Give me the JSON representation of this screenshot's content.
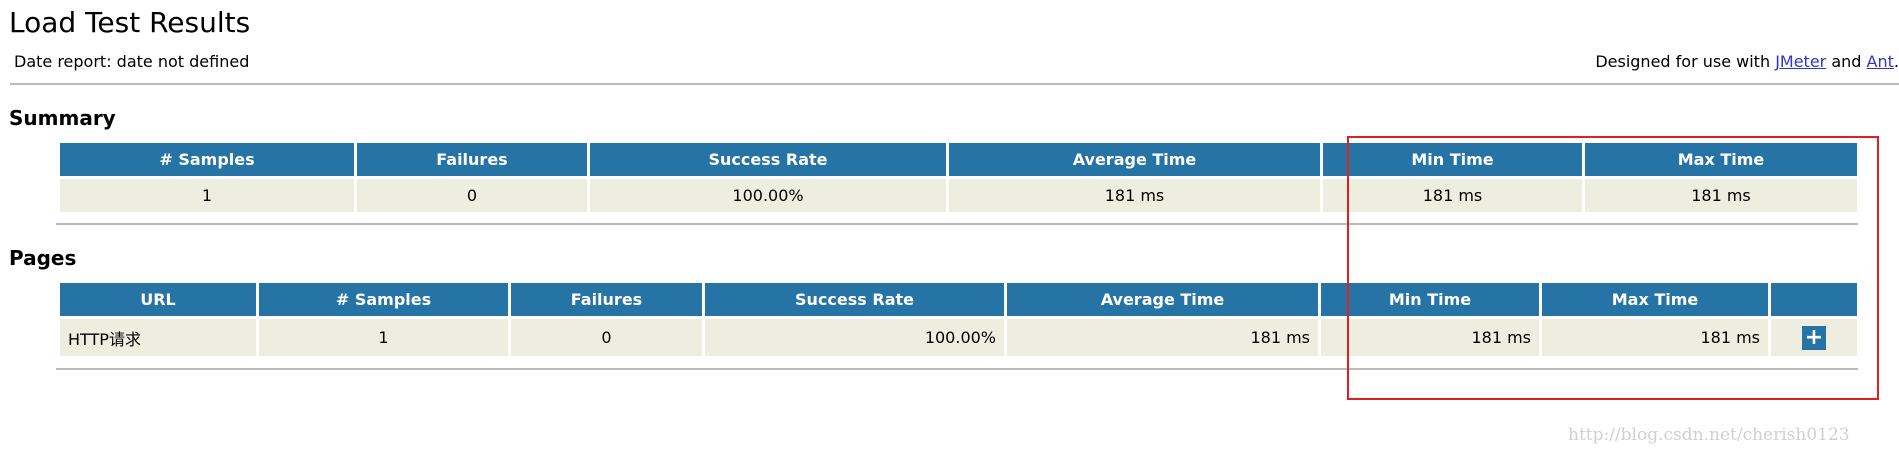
{
  "header": {
    "title": "Load Test Results",
    "date_report": "Date report: date not defined",
    "designed_prefix": "Designed for use with",
    "jmeter": "JMeter",
    "and": "and",
    "ant": "Ant",
    "period": "."
  },
  "summary": {
    "title": "Summary",
    "columns": [
      "# Samples",
      "Failures",
      "Success Rate",
      "Average Time",
      "Min Time",
      "Max Time"
    ],
    "rows": [
      [
        "1",
        "0",
        "100.00%",
        "181 ms",
        "181 ms",
        "181 ms"
      ]
    ]
  },
  "pages": {
    "title": "Pages",
    "columns": [
      "URL",
      "# Samples",
      "Failures",
      "Success Rate",
      "Average Time",
      "Min Time",
      "Max Time"
    ],
    "rows": [
      [
        "HTTP请求",
        "1",
        "0",
        "100.00%",
        "181 ms",
        "181 ms",
        "181 ms"
      ]
    ]
  },
  "watermark": "http://blog.csdn.net/cherish0123"
}
